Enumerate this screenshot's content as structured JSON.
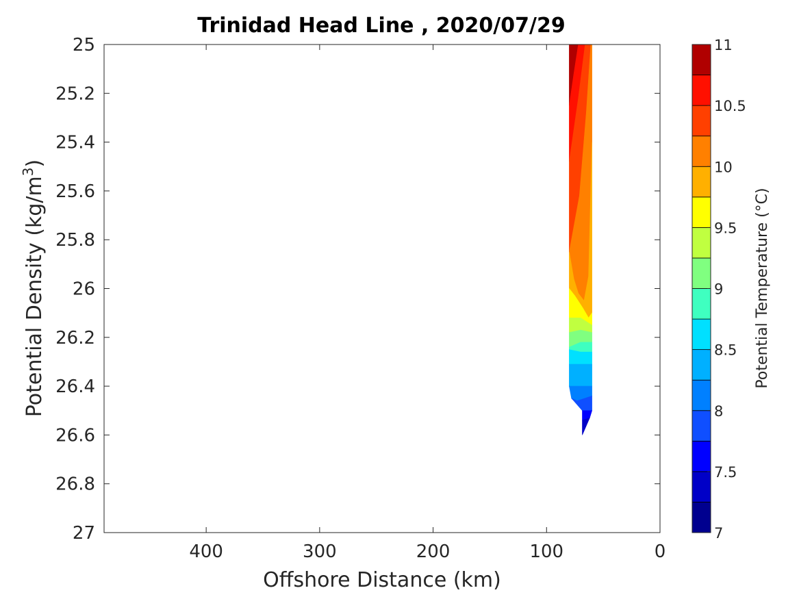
{
  "chart_data": {
    "type": "contour",
    "title": "Trinidad Head Line , 2020/07/29",
    "xlabel": "Offshore Distance (km)",
    "ylabel_main": "Potential Density (kg/m",
    "ylabel_sup": "3",
    "ylabel_close": ")",
    "colorbar_label": "Potential Temperature (°C)",
    "x_range": [
      490,
      0
    ],
    "x_reversed": true,
    "y_range": [
      25,
      27
    ],
    "y_reversed": true,
    "x_ticks": [
      400,
      300,
      200,
      100,
      0
    ],
    "y_ticks": [
      25,
      25.2,
      25.4,
      25.6,
      25.8,
      26,
      26.2,
      26.4,
      26.6,
      26.8,
      27
    ],
    "y_tick_labels": [
      "25",
      "25.2",
      "25.4",
      "25.6",
      "25.8",
      "26",
      "26.2",
      "26.4",
      "26.6",
      "26.8",
      "27"
    ],
    "x_tick_labels": [
      "400",
      "300",
      "200",
      "100",
      "0"
    ],
    "colorbar_range": [
      7,
      11
    ],
    "colorbar_ticks": [
      "7",
      "7.5",
      "8",
      "8.5",
      "9",
      "9.5",
      "10",
      "10.5",
      "11"
    ],
    "colorbar_tick_values": [
      7,
      7.5,
      8,
      8.5,
      9,
      9.5,
      10,
      10.5,
      11
    ],
    "colormap": "jet",
    "contour_levels": [
      7,
      7.25,
      7.5,
      7.75,
      8,
      8.25,
      8.5,
      8.75,
      9,
      9.25,
      9.5,
      9.75,
      10,
      10.25,
      10.5,
      10.75,
      11
    ],
    "level_colors": [
      "#00008F",
      "#0000C7",
      "#0000FF",
      "#0F4FFF",
      "#0080FF",
      "#00B0FF",
      "#00E0FF",
      "#3FFFC0",
      "#80FF80",
      "#C0FF40",
      "#FFFF00",
      "#FFB000",
      "#FF8000",
      "#FF4000",
      "#FF1000",
      "#B00000"
    ],
    "data_region": {
      "x_extent_km": [
        60,
        80
      ],
      "y_extent_density": [
        25,
        26.6
      ]
    },
    "filled_regions": [
      {
        "level": 10.75,
        "color": "#B00000",
        "polygon": [
          [
            80,
            25
          ],
          [
            72,
            25
          ],
          [
            76,
            25.12
          ],
          [
            80,
            25.25
          ]
        ]
      },
      {
        "level": 10.5,
        "color": "#FF1000",
        "polygon": [
          [
            72,
            25
          ],
          [
            66,
            25
          ],
          [
            72,
            25.22
          ],
          [
            80,
            25.48
          ],
          [
            80,
            25.25
          ],
          [
            76,
            25.12
          ]
        ]
      },
      {
        "level": 10.25,
        "color": "#FF4000",
        "polygon": [
          [
            66,
            25
          ],
          [
            61,
            25
          ],
          [
            65,
            25.28
          ],
          [
            71,
            25.62
          ],
          [
            80,
            25.85
          ],
          [
            80,
            25.48
          ],
          [
            72,
            25.22
          ]
        ]
      },
      {
        "level": 10,
        "color": "#FF8000",
        "polygon": [
          [
            61,
            25
          ],
          [
            60,
            25
          ],
          [
            60,
            25.4
          ],
          [
            63,
            25.95
          ],
          [
            67,
            26.05
          ],
          [
            72,
            26.02
          ],
          [
            76,
            25.96
          ],
          [
            80,
            25.85
          ],
          [
            71,
            25.62
          ],
          [
            65,
            25.28
          ]
        ]
      },
      {
        "level": 9.75,
        "color": "#FFB000",
        "polygon": [
          [
            60,
            25.4
          ],
          [
            60,
            26.1
          ],
          [
            63,
            26.12
          ],
          [
            68,
            26.08
          ],
          [
            75,
            26.03
          ],
          [
            80,
            26.0
          ],
          [
            80,
            25.85
          ],
          [
            76,
            25.96
          ],
          [
            72,
            26.02
          ],
          [
            67,
            26.05
          ],
          [
            63,
            25.95
          ]
        ]
      },
      {
        "level": 9.5,
        "color": "#FFFF00",
        "polygon": [
          [
            60,
            26.1
          ],
          [
            60,
            26.15
          ],
          [
            70,
            26.12
          ],
          [
            80,
            26.12
          ],
          [
            80,
            26.0
          ],
          [
            75,
            26.03
          ],
          [
            68,
            26.08
          ],
          [
            63,
            26.12
          ]
        ]
      },
      {
        "level": 9.25,
        "color": "#C0FF40",
        "polygon": [
          [
            60,
            26.15
          ],
          [
            60,
            26.18
          ],
          [
            70,
            26.17
          ],
          [
            80,
            26.18
          ],
          [
            80,
            26.12
          ],
          [
            70,
            26.12
          ]
        ]
      },
      {
        "level": 9,
        "color": "#80FF80",
        "polygon": [
          [
            60,
            26.18
          ],
          [
            60,
            26.22
          ],
          [
            70,
            26.22
          ],
          [
            80,
            26.24
          ],
          [
            80,
            26.18
          ],
          [
            70,
            26.17
          ]
        ]
      },
      {
        "level": 8.75,
        "color": "#3FFFC0",
        "polygon": [
          [
            60,
            26.22
          ],
          [
            60,
            26.26
          ],
          [
            70,
            26.26
          ],
          [
            80,
            26.25
          ],
          [
            80,
            26.24
          ],
          [
            70,
            26.22
          ]
        ]
      },
      {
        "level": 8.5,
        "color": "#00E0FF",
        "polygon": [
          [
            60,
            26.26
          ],
          [
            60,
            26.31
          ],
          [
            80,
            26.31
          ],
          [
            80,
            26.25
          ],
          [
            70,
            26.26
          ]
        ]
      },
      {
        "level": 8.25,
        "color": "#00B0FF",
        "polygon": [
          [
            60,
            26.31
          ],
          [
            60,
            26.4
          ],
          [
            70,
            26.4
          ],
          [
            80,
            26.4
          ],
          [
            80,
            26.31
          ]
        ]
      },
      {
        "level": 8,
        "color": "#0080FF",
        "polygon": [
          [
            60,
            26.4
          ],
          [
            60,
            26.44
          ],
          [
            73,
            26.46
          ],
          [
            78,
            26.45
          ],
          [
            80,
            26.4
          ],
          [
            70,
            26.4
          ]
        ]
      },
      {
        "level": 7.75,
        "color": "#0F4FFF",
        "polygon": [
          [
            60,
            26.44
          ],
          [
            60,
            26.5
          ],
          [
            68.5,
            26.5
          ],
          [
            76,
            26.46
          ],
          [
            78,
            26.45
          ],
          [
            73,
            26.46
          ]
        ]
      },
      {
        "level": 7.5,
        "color": "#0000FF",
        "polygon": [
          [
            60,
            26.5
          ],
          [
            62,
            26.53
          ],
          [
            68.5,
            26.54
          ],
          [
            68.5,
            26.5
          ]
        ]
      },
      {
        "level": 7.25,
        "color": "#0000C7",
        "polygon": [
          [
            62,
            26.53
          ],
          [
            68.5,
            26.6
          ],
          [
            68.5,
            26.54
          ]
        ]
      }
    ]
  }
}
